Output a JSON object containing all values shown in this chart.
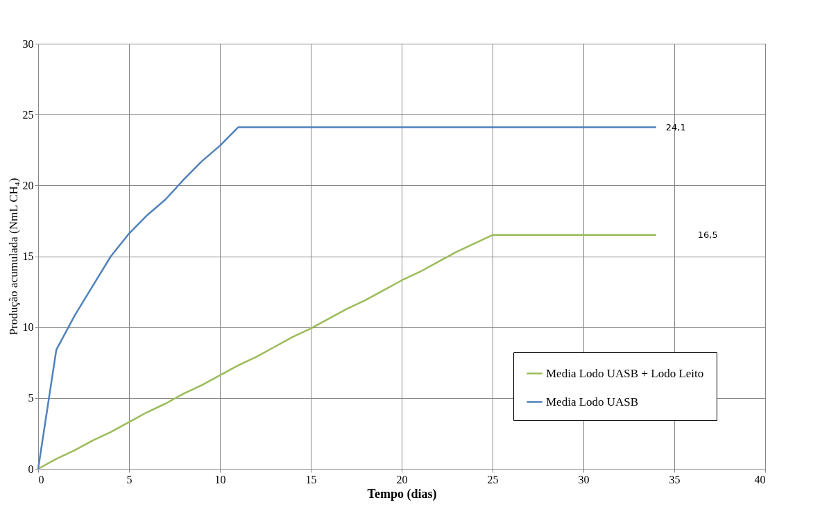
{
  "chart_data": {
    "type": "line",
    "xlabel": "Tempo (dias)",
    "ylabel": "Produção acumulada  (NmL CH₄)",
    "xlim": [
      0,
      40
    ],
    "xticks": [
      0,
      5,
      10,
      15,
      20,
      25,
      30,
      35,
      40
    ],
    "ylim": [
      0,
      30
    ],
    "yticks": [
      0,
      5,
      10,
      15,
      20,
      25,
      30
    ],
    "grid": true,
    "legend": "bottom right",
    "marker": "none",
    "line_style": "solid",
    "series": [
      {
        "name": "Media Lodo UASB + Lodo Leito",
        "color": "#9bbb59",
        "x": [
          0,
          1,
          2,
          3,
          4,
          5,
          6,
          7,
          8,
          9,
          10,
          11,
          12,
          13,
          14,
          15,
          16,
          17,
          18,
          19,
          20,
          21,
          22,
          23,
          24,
          25,
          34
        ],
        "values": [
          0,
          0.7,
          1.3,
          2.0,
          2.6,
          3.3,
          4.0,
          4.6,
          5.3,
          5.9,
          6.6,
          7.3,
          7.9,
          8.6,
          9.3,
          9.9,
          10.6,
          11.3,
          11.9,
          12.6,
          13.3,
          13.9,
          14.6,
          15.3,
          15.9,
          16.5,
          16.5
        ]
      },
      {
        "name": "Media Lodo UASB",
        "color": "#4f81bd",
        "x": [
          0,
          1,
          2,
          3,
          4,
          5,
          6,
          7,
          8,
          9,
          10,
          11,
          34
        ],
        "values": [
          0,
          8.4,
          10.8,
          12.9,
          15.0,
          16.6,
          17.9,
          19.0,
          20.4,
          21.7,
          22.8,
          24.1,
          24.1
        ]
      }
    ],
    "annotations": [
      "24,1",
      "16,5"
    ]
  }
}
